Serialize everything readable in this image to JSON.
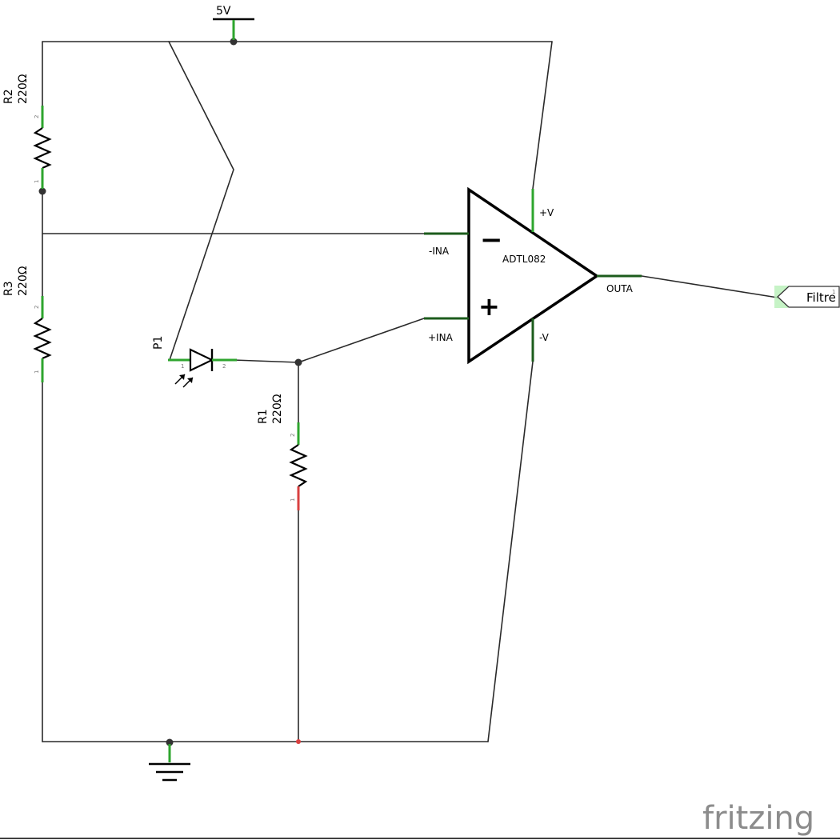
{
  "power": {
    "label": "5V"
  },
  "resistors": {
    "r2": {
      "ref": "R2",
      "value": "220Ω",
      "pin_top": "2",
      "pin_bottom": "1"
    },
    "r3": {
      "ref": "R3",
      "value": "220Ω",
      "pin_top": "2",
      "pin_bottom": "1"
    },
    "r1": {
      "ref": "R1",
      "value": "220Ω",
      "pin_top": "2",
      "pin_bottom": "1"
    }
  },
  "photodiode": {
    "ref": "P1",
    "pin_left": "1",
    "pin_right": "2"
  },
  "opamp": {
    "part": "ADTL082",
    "inverting_pin": "-INA",
    "noninverting_pin": "+INA",
    "supply_pos": "+V",
    "supply_neg": "-V",
    "output_pin": "OUTA",
    "minus_symbol": "−",
    "plus_symbol": "+"
  },
  "net_label": {
    "text": "Filtre",
    "pin": "1"
  },
  "branding": {
    "logo_text": "fritzing"
  },
  "colors": {
    "wire": "#2a2a2a",
    "pin_connected": "#2ea52e",
    "pin_unconnected": "#d94040",
    "logo": "#8c8c8c"
  }
}
